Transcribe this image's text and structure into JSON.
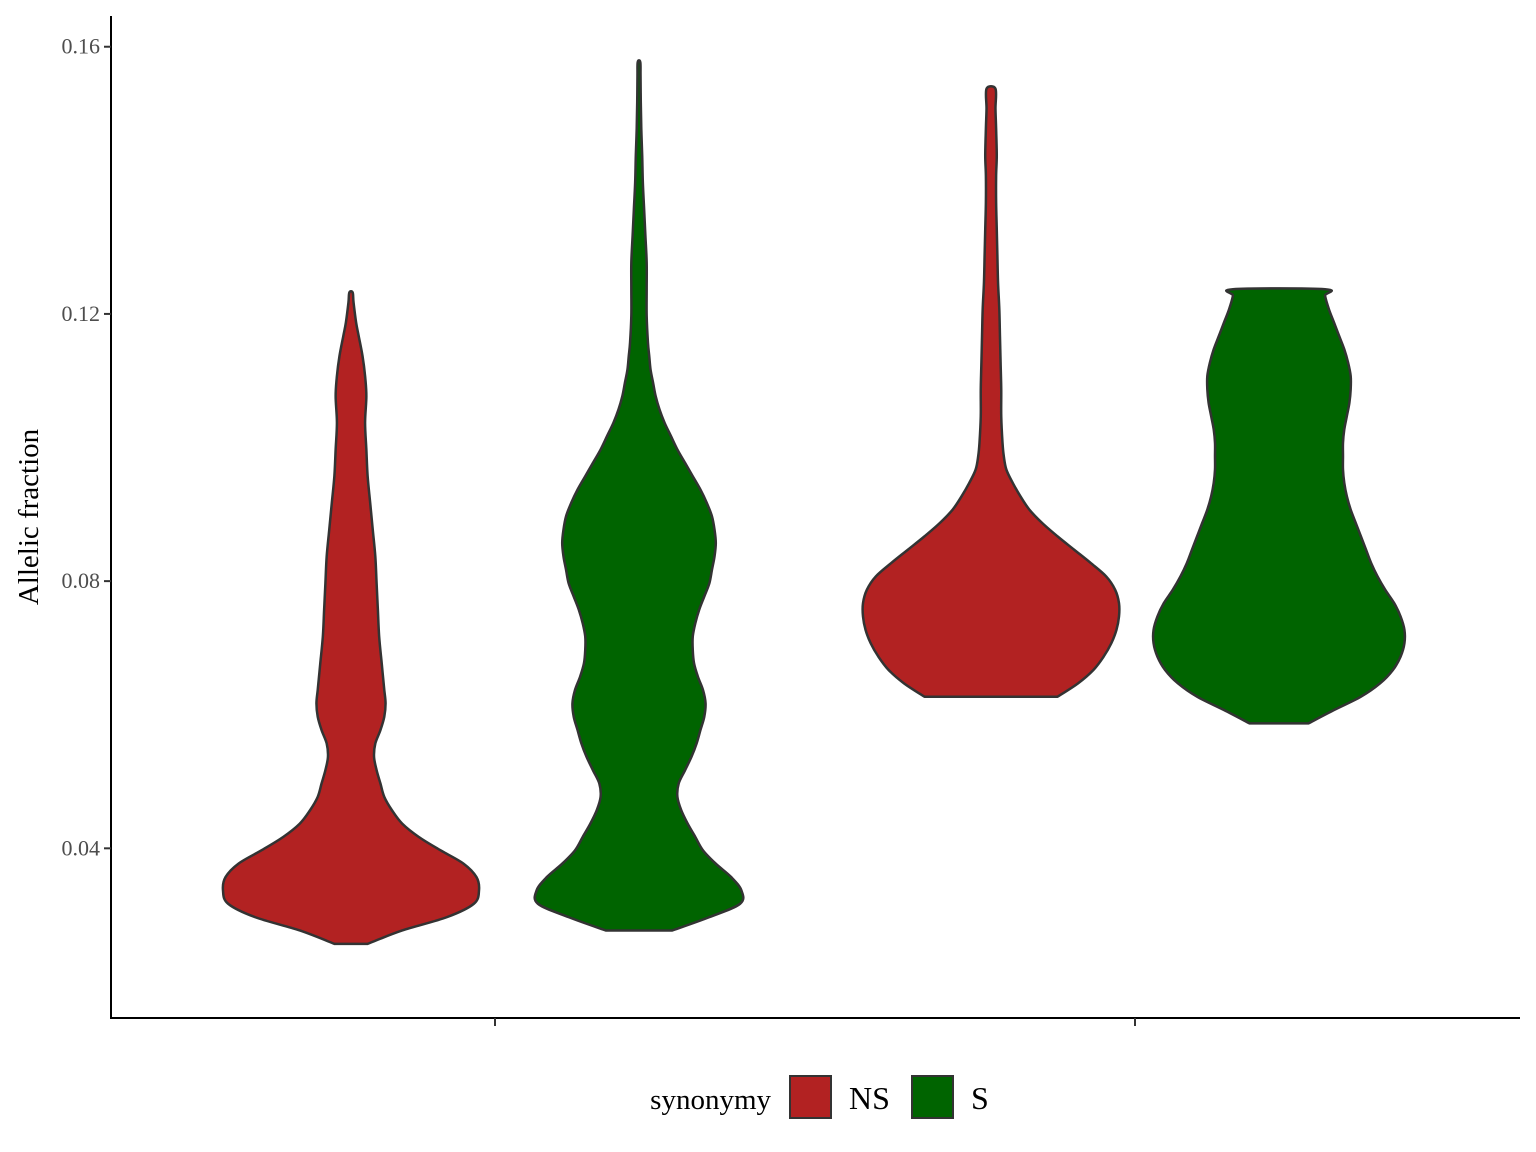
{
  "chart_data": {
    "type": "violin",
    "title": "",
    "xlabel": "",
    "ylabel": "Allelic fraction",
    "ylim": [
      0.0146,
      0.1646
    ],
    "y_ticks": [
      0.04,
      0.08,
      0.12,
      0.16
    ],
    "y_tick_labels": [
      "0.04",
      "0.08",
      "0.12",
      "0.16"
    ],
    "x_groups": 2,
    "x_tick_labels": [
      "",
      ""
    ],
    "grid": false,
    "legend": {
      "title": "synonymy",
      "position": "bottom",
      "entries": [
        {
          "label": "NS",
          "color": "#b22222"
        },
        {
          "label": "S",
          "color": "#006400"
        }
      ]
    },
    "outline_color": "#333333",
    "series": [
      {
        "name": "NS",
        "group": 1,
        "color": "#b22222",
        "profile": [
          [
            0.0257,
            0.13
          ],
          [
            0.0277,
            0.4
          ],
          [
            0.0297,
            0.75
          ],
          [
            0.0317,
            0.96
          ],
          [
            0.0337,
            1.0
          ],
          [
            0.0357,
            0.98
          ],
          [
            0.0377,
            0.88
          ],
          [
            0.0397,
            0.7
          ],
          [
            0.0417,
            0.53
          ],
          [
            0.0437,
            0.4
          ],
          [
            0.0457,
            0.32
          ],
          [
            0.0477,
            0.26
          ],
          [
            0.0497,
            0.23
          ],
          [
            0.0517,
            0.2
          ],
          [
            0.0537,
            0.18
          ],
          [
            0.0557,
            0.19
          ],
          [
            0.0577,
            0.23
          ],
          [
            0.0597,
            0.26
          ],
          [
            0.0617,
            0.27
          ],
          [
            0.0637,
            0.26
          ],
          [
            0.0657,
            0.25
          ],
          [
            0.0677,
            0.24
          ],
          [
            0.0717,
            0.22
          ],
          [
            0.0757,
            0.21
          ],
          [
            0.0797,
            0.2
          ],
          [
            0.0837,
            0.19
          ],
          [
            0.0877,
            0.17
          ],
          [
            0.0917,
            0.15
          ],
          [
            0.0957,
            0.13
          ],
          [
            0.0997,
            0.12
          ],
          [
            0.1037,
            0.11
          ],
          [
            0.1077,
            0.12
          ],
          [
            0.1107,
            0.11
          ],
          [
            0.1137,
            0.09
          ],
          [
            0.1167,
            0.06
          ],
          [
            0.1187,
            0.04
          ],
          [
            0.1217,
            0.02
          ],
          [
            0.1232,
            0.013
          ]
        ]
      },
      {
        "name": "S",
        "group": 1,
        "color": "#006400",
        "profile": [
          [
            0.0277,
            0.26
          ],
          [
            0.0297,
            0.55
          ],
          [
            0.0317,
            0.79
          ],
          [
            0.0337,
            0.8
          ],
          [
            0.0357,
            0.72
          ],
          [
            0.0377,
            0.6
          ],
          [
            0.0397,
            0.5
          ],
          [
            0.0417,
            0.44
          ],
          [
            0.0437,
            0.38
          ],
          [
            0.0457,
            0.33
          ],
          [
            0.0477,
            0.3
          ],
          [
            0.0497,
            0.31
          ],
          [
            0.0517,
            0.36
          ],
          [
            0.0537,
            0.41
          ],
          [
            0.0557,
            0.45
          ],
          [
            0.0577,
            0.48
          ],
          [
            0.0597,
            0.51
          ],
          [
            0.0617,
            0.52
          ],
          [
            0.0637,
            0.5
          ],
          [
            0.0657,
            0.46
          ],
          [
            0.0677,
            0.43
          ],
          [
            0.0697,
            0.42
          ],
          [
            0.0717,
            0.42
          ],
          [
            0.0737,
            0.44
          ],
          [
            0.0757,
            0.47
          ],
          [
            0.0777,
            0.51
          ],
          [
            0.0797,
            0.55
          ],
          [
            0.0817,
            0.57
          ],
          [
            0.0837,
            0.59
          ],
          [
            0.0857,
            0.6
          ],
          [
            0.0877,
            0.59
          ],
          [
            0.0897,
            0.57
          ],
          [
            0.0917,
            0.53
          ],
          [
            0.0937,
            0.48
          ],
          [
            0.0957,
            0.42
          ],
          [
            0.0977,
            0.36
          ],
          [
            0.0997,
            0.3
          ],
          [
            0.1017,
            0.25
          ],
          [
            0.1037,
            0.2
          ],
          [
            0.1057,
            0.16
          ],
          [
            0.1077,
            0.13
          ],
          [
            0.1097,
            0.11
          ],
          [
            0.1117,
            0.09
          ],
          [
            0.1137,
            0.08
          ],
          [
            0.1157,
            0.07
          ],
          [
            0.1197,
            0.06
          ],
          [
            0.1237,
            0.06
          ],
          [
            0.1277,
            0.06
          ],
          [
            0.1317,
            0.05
          ],
          [
            0.1357,
            0.04
          ],
          [
            0.1397,
            0.03
          ],
          [
            0.1437,
            0.025
          ],
          [
            0.1477,
            0.018
          ],
          [
            0.1517,
            0.014
          ],
          [
            0.1557,
            0.012
          ],
          [
            0.1577,
            0.01
          ]
        ]
      },
      {
        "name": "NS",
        "group": 2,
        "color": "#b22222",
        "profile": [
          [
            0.0627,
            0.52
          ],
          [
            0.0647,
            0.68
          ],
          [
            0.0667,
            0.8
          ],
          [
            0.0687,
            0.88
          ],
          [
            0.0707,
            0.94
          ],
          [
            0.0727,
            0.98
          ],
          [
            0.0747,
            1.0
          ],
          [
            0.0767,
            1.0
          ],
          [
            0.0787,
            0.97
          ],
          [
            0.0807,
            0.9
          ],
          [
            0.0827,
            0.78
          ],
          [
            0.0847,
            0.65
          ],
          [
            0.0867,
            0.52
          ],
          [
            0.0887,
            0.4
          ],
          [
            0.0907,
            0.3
          ],
          [
            0.0927,
            0.23
          ],
          [
            0.0947,
            0.17
          ],
          [
            0.0967,
            0.12
          ],
          [
            0.0987,
            0.1
          ],
          [
            0.1007,
            0.09
          ],
          [
            0.1047,
            0.08
          ],
          [
            0.1087,
            0.08
          ],
          [
            0.1127,
            0.075
          ],
          [
            0.1167,
            0.07
          ],
          [
            0.1207,
            0.065
          ],
          [
            0.1247,
            0.055
          ],
          [
            0.1287,
            0.05
          ],
          [
            0.1327,
            0.045
          ],
          [
            0.1367,
            0.04
          ],
          [
            0.1407,
            0.04
          ],
          [
            0.1437,
            0.045
          ],
          [
            0.1477,
            0.04
          ],
          [
            0.1507,
            0.035
          ],
          [
            0.1537,
            0.035
          ]
        ]
      },
      {
        "name": "S",
        "group": 2,
        "color": "#006400",
        "profile": [
          [
            0.0587,
            0.23
          ],
          [
            0.0607,
            0.43
          ],
          [
            0.0627,
            0.64
          ],
          [
            0.0647,
            0.79
          ],
          [
            0.0667,
            0.89
          ],
          [
            0.0687,
            0.95
          ],
          [
            0.0707,
            0.98
          ],
          [
            0.0727,
            0.98
          ],
          [
            0.0747,
            0.95
          ],
          [
            0.0767,
            0.9
          ],
          [
            0.0787,
            0.83
          ],
          [
            0.0807,
            0.77
          ],
          [
            0.0827,
            0.72
          ],
          [
            0.0847,
            0.68
          ],
          [
            0.0867,
            0.64
          ],
          [
            0.0887,
            0.6
          ],
          [
            0.0907,
            0.56
          ],
          [
            0.0927,
            0.53
          ],
          [
            0.0947,
            0.51
          ],
          [
            0.0967,
            0.5
          ],
          [
            0.0987,
            0.5
          ],
          [
            0.1007,
            0.5
          ],
          [
            0.1027,
            0.51
          ],
          [
            0.1047,
            0.53
          ],
          [
            0.1067,
            0.55
          ],
          [
            0.1087,
            0.56
          ],
          [
            0.1107,
            0.56
          ],
          [
            0.1127,
            0.54
          ],
          [
            0.1147,
            0.51
          ],
          [
            0.1167,
            0.47
          ],
          [
            0.1187,
            0.43
          ],
          [
            0.1207,
            0.39
          ],
          [
            0.1227,
            0.36
          ],
          [
            0.1237,
            0.36
          ]
        ]
      }
    ]
  }
}
